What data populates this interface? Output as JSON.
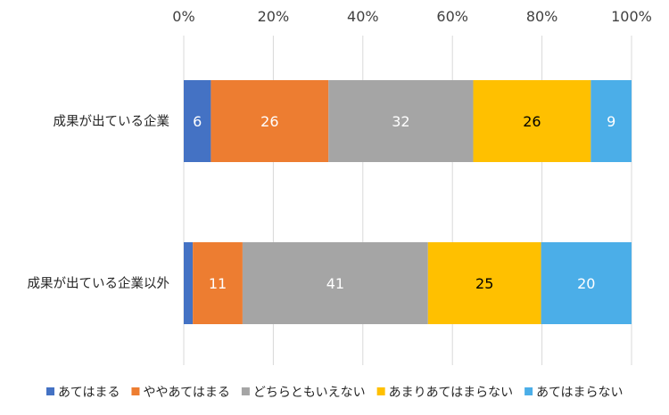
{
  "chart_data": {
    "type": "bar",
    "orientation": "horizontal",
    "stacked": "percent",
    "xlim": [
      0,
      100
    ],
    "x_ticks": [
      "0%",
      "20%",
      "40%",
      "60%",
      "80%",
      "100%"
    ],
    "grid": true,
    "legend_position": "bottom",
    "categories": [
      "成果が出ている企業",
      "成果が出ている企業以外"
    ],
    "series": [
      {
        "name": "あてはまる",
        "color": "#4472C4",
        "label_color": "#ffffff",
        "values": [
          6,
          2
        ],
        "labels": [
          "6",
          null
        ]
      },
      {
        "name": "ややあてはまる",
        "color": "#ED7D31",
        "label_color": "#ffffff",
        "values": [
          26,
          11
        ],
        "labels": [
          "26",
          "11"
        ]
      },
      {
        "name": "どちらともいえない",
        "color": "#A5A5A5",
        "label_color": "#ffffff",
        "values": [
          32,
          41
        ],
        "labels": [
          "32",
          "41"
        ]
      },
      {
        "name": "あまりあてはまらない",
        "color": "#FFC000",
        "label_color": "#000000",
        "values": [
          26,
          25
        ],
        "labels": [
          "26",
          "25"
        ]
      },
      {
        "name": "あてはまらない",
        "color": "#4BAEE8",
        "label_color": "#ffffff",
        "values": [
          9,
          20
        ],
        "labels": [
          "9",
          "20"
        ]
      }
    ]
  }
}
